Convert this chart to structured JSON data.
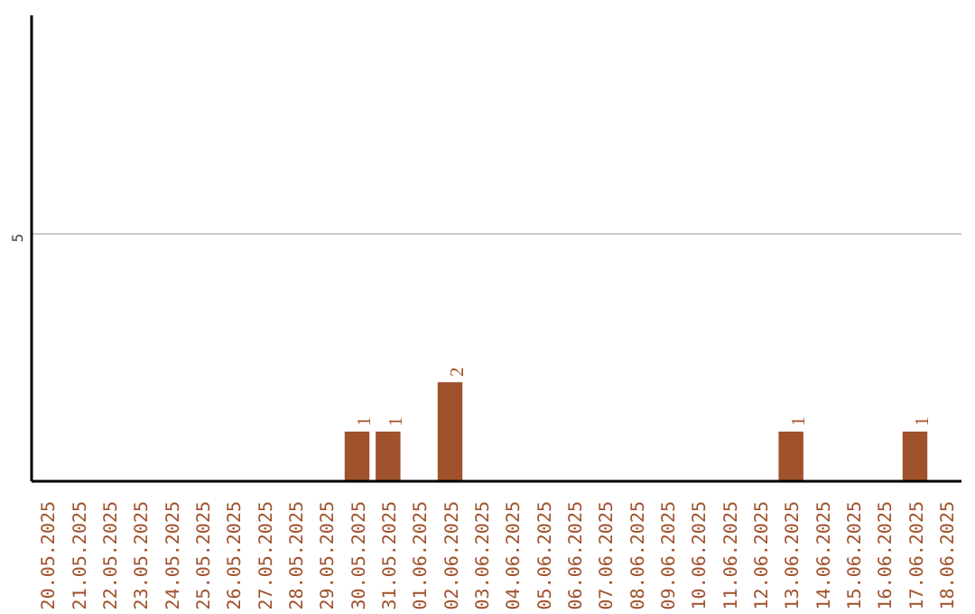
{
  "chart_data": {
    "type": "bar",
    "categories": [
      "20.05.2025",
      "21.05.2025",
      "22.05.2025",
      "23.05.2025",
      "24.05.2025",
      "25.05.2025",
      "26.05.2025",
      "27.05.2025",
      "28.05.2025",
      "29.05.2025",
      "30.05.2025",
      "31.05.2025",
      "01.06.2025",
      "02.06.2025",
      "03.06.2025",
      "04.06.2025",
      "05.06.2025",
      "06.06.2025",
      "07.06.2025",
      "08.06.2025",
      "09.06.2025",
      "10.06.2025",
      "11.06.2025",
      "12.06.2025",
      "13.06.2025",
      "14.06.2025",
      "15.06.2025",
      "16.06.2025",
      "17.06.2025",
      "18.06.2025"
    ],
    "values": [
      0,
      0,
      0,
      0,
      0,
      0,
      0,
      0,
      0,
      0,
      1,
      1,
      0,
      2,
      0,
      0,
      0,
      0,
      0,
      0,
      0,
      0,
      0,
      0,
      1,
      0,
      0,
      0,
      1,
      0
    ],
    "value_labels": [
      null,
      null,
      null,
      null,
      null,
      null,
      null,
      null,
      null,
      null,
      "1",
      "1",
      null,
      "2",
      null,
      null,
      null,
      null,
      null,
      null,
      null,
      null,
      null,
      null,
      "1",
      null,
      null,
      null,
      "1",
      null
    ],
    "color": "#a0522d",
    "ylim": [
      0,
      9.4
    ],
    "yticks": [
      5
    ],
    "grid": "y"
  }
}
